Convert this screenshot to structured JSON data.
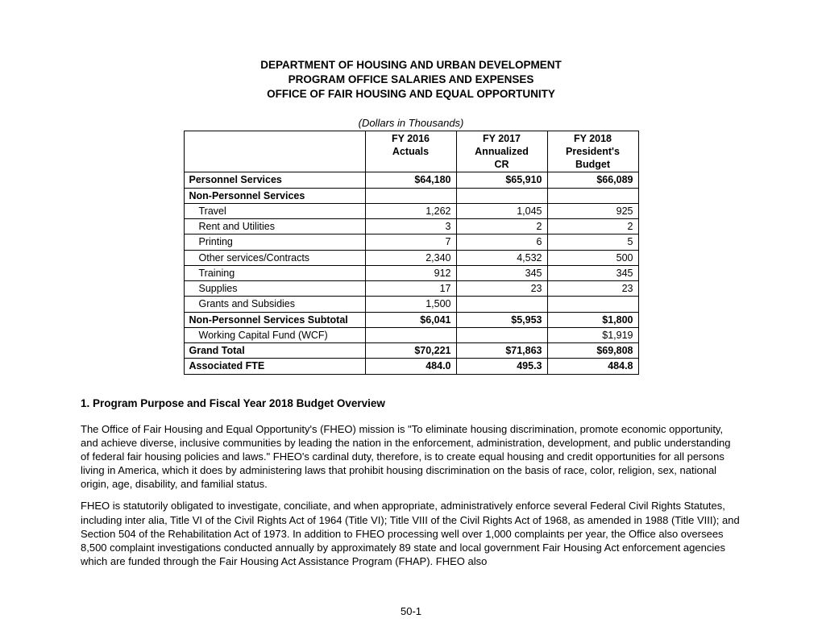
{
  "heading": {
    "line1": "DEPARTMENT OF HOUSING AND URBAN DEVELOPMENT",
    "line2": "PROGRAM OFFICE SALARIES AND EXPENSES",
    "line3": "OFFICE OF FAIR HOUSING AND EQUAL OPPORTUNITY"
  },
  "table_caption": "(Dollars in Thousands)",
  "table": {
    "columns": [
      {
        "h1": "FY 2016",
        "h2": "Actuals",
        "h3": ""
      },
      {
        "h1": "FY 2017",
        "h2": "Annualized",
        "h3": "CR"
      },
      {
        "h1": "FY 2018",
        "h2": "President's",
        "h3": "Budget"
      }
    ],
    "col_widths": {
      "label": 212,
      "value": 100
    },
    "rows": [
      {
        "label": "Personnel Services",
        "style": "bold",
        "v": [
          "$64,180",
          "$65,910",
          "$66,089"
        ],
        "vstyle": "bold"
      },
      {
        "label": "Non-Personnel Services",
        "style": "bold",
        "v": [
          "",
          "",
          ""
        ],
        "vstyle": "bold"
      },
      {
        "label": "Travel",
        "style": "indent",
        "v": [
          "1,262",
          "1,045",
          "925"
        ],
        "vstyle": ""
      },
      {
        "label": "Rent and Utilities",
        "style": "indent",
        "v": [
          "3",
          "2",
          "2"
        ],
        "vstyle": ""
      },
      {
        "label": "Printing",
        "style": "indent",
        "v": [
          "7",
          "6",
          "5"
        ],
        "vstyle": ""
      },
      {
        "label": "Other services/Contracts",
        "style": "indent",
        "v": [
          "2,340",
          "4,532",
          "500"
        ],
        "vstyle": ""
      },
      {
        "label": "Training",
        "style": "indent",
        "v": [
          "912",
          "345",
          "345"
        ],
        "vstyle": ""
      },
      {
        "label": "Supplies",
        "style": "indent",
        "v": [
          "17",
          "23",
          "23"
        ],
        "vstyle": ""
      },
      {
        "label": "Grants and Subsidies",
        "style": "indent",
        "v": [
          "1,500",
          "",
          ""
        ],
        "vstyle": ""
      },
      {
        "label": "Non-Personnel Services Subtotal",
        "style": "bold",
        "v": [
          "$6,041",
          "$5,953",
          "$1,800"
        ],
        "vstyle": "bold"
      },
      {
        "label": "Working Capital Fund (WCF)",
        "style": "indent",
        "v": [
          "",
          "",
          "$1,919"
        ],
        "vstyle": ""
      },
      {
        "label": "Grand Total",
        "style": "bold",
        "v": [
          "$70,221",
          "$71,863",
          "$69,808"
        ],
        "vstyle": "bold"
      },
      {
        "label": "Associated FTE",
        "style": "bold",
        "v": [
          "484.0",
          "495.3",
          "484.8"
        ],
        "vstyle": "bold"
      }
    ]
  },
  "section_title": "1.   Program Purpose and Fiscal Year 2018 Budget Overview",
  "paragraphs": {
    "p1": "The Office of Fair Housing and Equal Opportunity's (FHEO) mission is \"To eliminate housing discrimination, promote economic opportunity, and achieve diverse, inclusive communities by leading the nation in the enforcement, administration, development, and public understanding of federal fair housing policies and laws.\"  FHEO's cardinal duty, therefore, is to create equal housing and credit opportunities for all persons living in America, which it does by administering laws that prohibit housing discrimination on the basis of race, color, religion, sex, national origin, age, disability, and familial status.",
    "p2": "FHEO is statutorily obligated to investigate, conciliate, and when appropriate, administratively enforce several Federal Civil Rights Statutes, including inter alia, Title VI of the Civil Rights Act of 1964 (Title VI); Title VIII of the Civil Rights Act of 1968, as amended in 1988 (Title VIII); and Section 504 of the Rehabilitation Act of 1973.  In addition to FHEO processing well over 1,000 complaints per year, the Office also oversees 8,500 complaint investigations conducted annually by approximately 89 state and local government Fair Housing Act enforcement agencies which are funded through the Fair Housing Act Assistance Program (FHAP). FHEO also"
  },
  "page_number": "50-1",
  "styling": {
    "font_family": "Verdana",
    "text_color": "#000000",
    "background_color": "#ffffff",
    "border_color": "#000000",
    "heading_fontsize": 13.5,
    "body_fontsize": 13,
    "table_fontsize": 12.5
  }
}
